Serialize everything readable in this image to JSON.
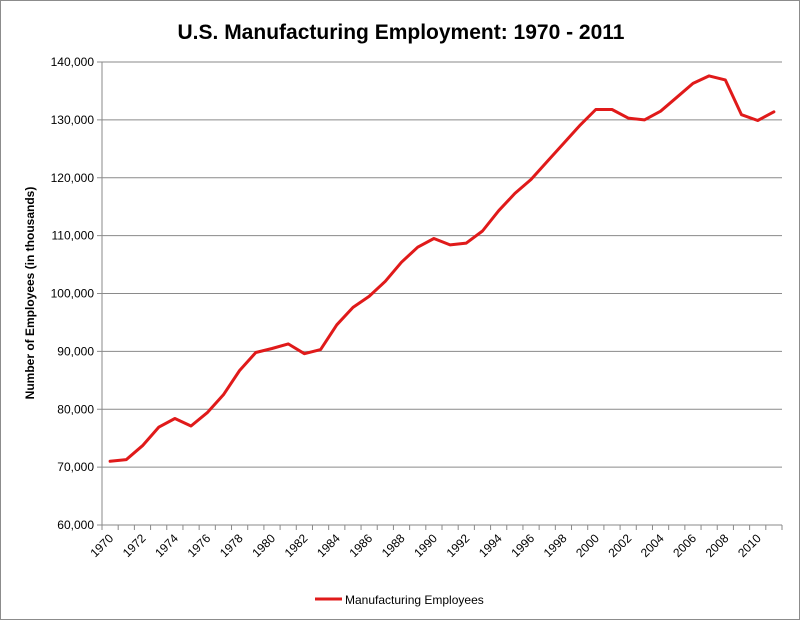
{
  "chart_data": {
    "type": "line",
    "title": "U.S. Manufacturing Employment: 1970 - 2011",
    "xlabel": "",
    "ylabel": "Number of Employees (in thousands)",
    "ylim": [
      60000,
      140000
    ],
    "yticks": [
      "60,000",
      "70,000",
      "80,000",
      "90,000",
      "100,000",
      "110,000",
      "120,000",
      "130,000",
      "140,000"
    ],
    "xticks": [
      "1970",
      "1972",
      "1974",
      "1976",
      "1978",
      "1980",
      "1982",
      "1984",
      "1986",
      "1988",
      "1990",
      "1992",
      "1994",
      "1996",
      "1998",
      "2000",
      "2002",
      "2004",
      "2006",
      "2008",
      "2010"
    ],
    "grid": "horizontal",
    "legend_position": "bottom",
    "x": [
      1970,
      1971,
      1972,
      1973,
      1974,
      1975,
      1976,
      1977,
      1978,
      1979,
      1980,
      1981,
      1982,
      1983,
      1984,
      1985,
      1986,
      1987,
      1988,
      1989,
      1990,
      1991,
      1992,
      1993,
      1994,
      1995,
      1996,
      1997,
      1998,
      1999,
      2000,
      2001,
      2002,
      2003,
      2004,
      2005,
      2006,
      2007,
      2008,
      2009,
      2010,
      2011
    ],
    "series": [
      {
        "name": "Manufacturing Employees",
        "color": "#e01a1a",
        "values": [
          71000,
          71300,
          73700,
          76900,
          78400,
          77100,
          79400,
          82500,
          86700,
          89800,
          90500,
          91300,
          89600,
          90300,
          94600,
          97600,
          99500,
          102100,
          105400,
          108000,
          109500,
          108400,
          108700,
          110800,
          114300,
          117300,
          119700,
          122800,
          125900,
          129000,
          131800,
          131800,
          130300,
          130000,
          131500,
          133900,
          136300,
          137600,
          136900,
          130900,
          129900,
          131400
        ]
      }
    ]
  }
}
